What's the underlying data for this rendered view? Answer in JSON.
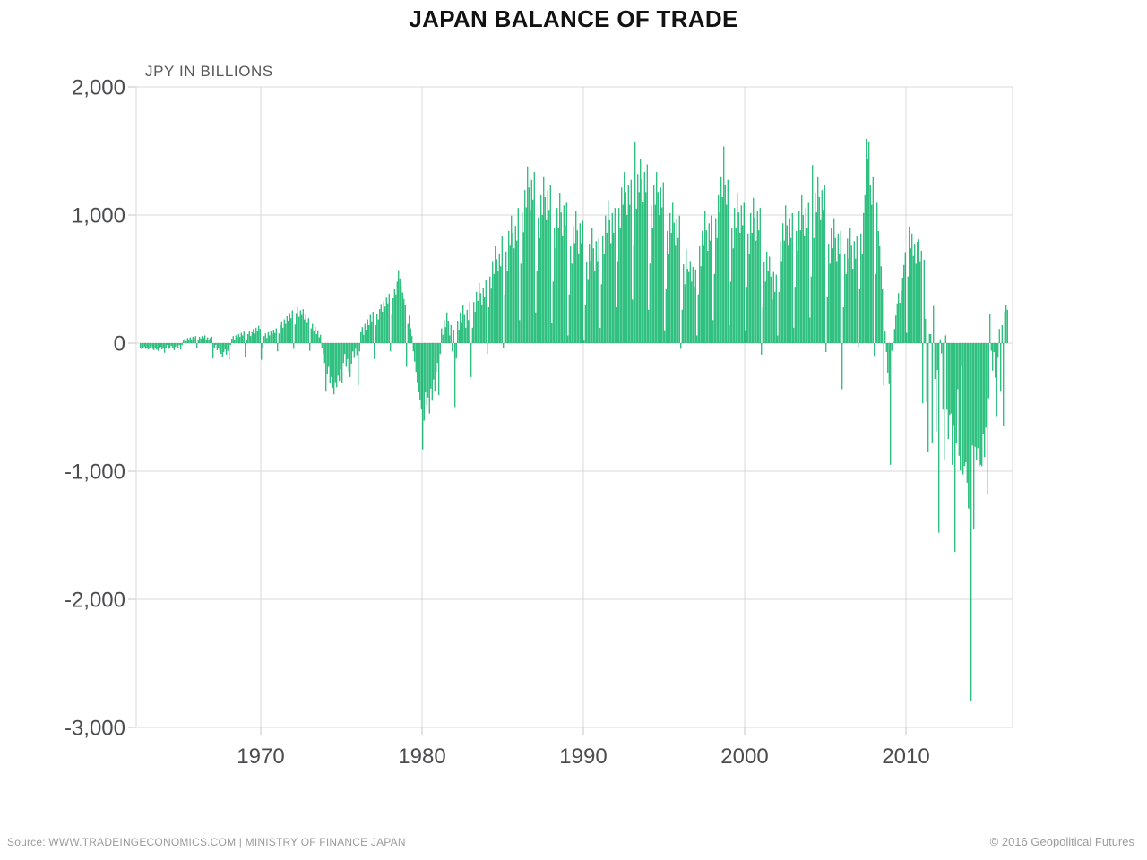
{
  "title": "JAPAN BALANCE OF TRADE",
  "subtitle": "JPY IN BILLIONS",
  "footer": {
    "source": "Source: WWW.TRADEINGECONOMICS.COM | MINISTRY OF FINANCE JAPAN",
    "copyright": "© 2016 Geopolitical Futures"
  },
  "colors": {
    "bar": "#00B163",
    "grid": "#D9D9D9",
    "tick": "#C4C4C4",
    "axis_text": "#4B4C4E",
    "title_text": "#121212",
    "subtitle_text": "#58595B",
    "footer_text": "#9B9B9B",
    "background": "#FFFFFF"
  },
  "chart_data": {
    "type": "bar",
    "title": "JAPAN BALANCE OF TRADE",
    "xlabel": "",
    "ylabel": "JPY IN BILLIONS",
    "unit": "JPY billions",
    "frequency": "monthly",
    "start": "1962-07",
    "ylim": [
      -3000,
      2000
    ],
    "y_ticks": [
      2000,
      1000,
      0,
      -1000,
      -2000,
      -3000
    ],
    "x_ticks": [
      1970,
      1980,
      1990,
      2000,
      2010
    ],
    "grid": true,
    "legend": "none",
    "values": [
      -35,
      -50,
      -40,
      -30,
      -45,
      -40,
      -50,
      -40,
      -25,
      -45,
      -55,
      -35,
      -50,
      -60,
      -40,
      -30,
      -50,
      -35,
      -75,
      -40,
      -15,
      -45,
      -35,
      -20,
      -40,
      -55,
      -30,
      -20,
      -40,
      -15,
      -50,
      -15,
      20,
      35,
      15,
      40,
      25,
      45,
      30,
      50,
      40,
      55,
      -40,
      25,
      50,
      35,
      55,
      40,
      60,
      30,
      45,
      25,
      40,
      50,
      -120,
      -40,
      -15,
      -55,
      -35,
      -65,
      -85,
      -105,
      -70,
      -50,
      -90,
      -60,
      -130,
      -15,
      35,
      55,
      25,
      60,
      45,
      70,
      50,
      80,
      60,
      90,
      -110,
      25,
      70,
      95,
      55,
      85,
      110,
      75,
      120,
      95,
      135,
      110,
      -130,
      -35,
      55,
      75,
      40,
      85,
      60,
      95,
      70,
      105,
      80,
      115,
      -65,
      75,
      140,
      170,
      120,
      185,
      150,
      210,
      175,
      235,
      195,
      255,
      -45,
      145,
      235,
      280,
      205,
      255,
      220,
      265,
      185,
      225,
      165,
      195,
      -60,
      115,
      150,
      95,
      130,
      70,
      100,
      45,
      65,
      -35,
      -85,
      -155,
      -380,
      -245,
      -185,
      -315,
      -265,
      -350,
      -400,
      -305,
      -345,
      -255,
      -295,
      -205,
      -315,
      -155,
      -85,
      -185,
      -125,
      -225,
      -265,
      -160,
      -65,
      -115,
      -45,
      -95,
      -330,
      -65,
      85,
      125,
      65,
      150,
      105,
      185,
      140,
      220,
      170,
      245,
      -125,
      140,
      225,
      185,
      265,
      305,
      245,
      325,
      285,
      355,
      310,
      385,
      -65,
      230,
      350,
      420,
      380,
      480,
      570,
      505,
      450,
      395,
      345,
      295,
      -185,
      150,
      215,
      115,
      55,
      -65,
      -145,
      -225,
      -305,
      -385,
      -445,
      -515,
      -830,
      -605,
      -385,
      -485,
      -425,
      -550,
      -355,
      -450,
      -285,
      -380,
      -225,
      -155,
      -405,
      -85,
      115,
      65,
      180,
      125,
      240,
      175,
      60,
      140,
      -65,
      105,
      -500,
      -120,
      175,
      105,
      240,
      165,
      300,
      220,
      120,
      260,
      180,
      320,
      -265,
      120,
      320,
      245,
      400,
      330,
      470,
      390,
      300,
      430,
      360,
      495,
      -85,
      280,
      520,
      425,
      640,
      540,
      755,
      655,
      560,
      700,
      600,
      835,
      -35,
      380,
      715,
      565,
      875,
      760,
      995,
      860,
      740,
      915,
      800,
      1055,
      180,
      620,
      1020,
      865,
      1195,
      1060,
      1380,
      1215,
      1040,
      1275,
      1120,
      1335,
      240,
      560,
      980,
      820,
      1155,
      1000,
      1295,
      1140,
      960,
      1195,
      1040,
      1235,
      160,
      480,
      895,
      740,
      1055,
      900,
      1175,
      1020,
      840,
      1075,
      920,
      1095,
      60,
      380,
      755,
      620,
      915,
      780,
      1035,
      880,
      700,
      935,
      780,
      955,
      20,
      300,
      635,
      500,
      775,
      640,
      895,
      740,
      560,
      795,
      640,
      815,
      120,
      460,
      835,
      700,
      995,
      860,
      1115,
      960,
      780,
      1015,
      860,
      1055,
      280,
      640,
      1055,
      900,
      1215,
      1080,
      1335,
      1180,
      1000,
      1235,
      1080,
      1275,
      340,
      760,
      1570,
      1050,
      1320,
      1180,
      1435,
      1280,
      1100,
      1335,
      1180,
      1395,
      260,
      620,
      1075,
      900,
      1235,
      1080,
      1335,
      1180,
      1000,
      1215,
      1060,
      1255,
      100,
      420,
      875,
      700,
      1015,
      860,
      1095,
      940,
      760,
      975,
      820,
      995,
      -45,
      260,
      615,
      460,
      735,
      580,
      555,
      640,
      480,
      595,
      440,
      575,
      60,
      380,
      755,
      600,
      875,
      760,
      1035,
      880,
      720,
      935,
      800,
      995,
      180,
      540,
      975,
      820,
      1155,
      1020,
      1295,
      1140,
      1535,
      1235,
      1080,
      1275,
      140,
      480,
      895,
      740,
      1055,
      900,
      1175,
      1020,
      860,
      1075,
      920,
      1095,
      100,
      440,
      855,
      700,
      1015,
      860,
      1135,
      980,
      800,
      1035,
      880,
      1055,
      -90,
      280,
      635,
      480,
      715,
      560,
      675,
      520,
      340,
      555,
      400,
      535,
      60,
      400,
      795,
      640,
      935,
      800,
      1075,
      920,
      760,
      975,
      820,
      1015,
      120,
      440,
      875,
      720,
      1035,
      880,
      1155,
      1000,
      840,
      1055,
      900,
      1095,
      200,
      520,
      1390,
      820,
      1175,
      1020,
      1295,
      1140,
      960,
      1195,
      1040,
      1235,
      -70,
      360,
      775,
      620,
      895,
      740,
      975,
      820,
      640,
      855,
      700,
      875,
      -360,
      280,
      695,
      540,
      815,
      660,
      895,
      760,
      580,
      795,
      660,
      835,
      -30,
      420,
      855,
      700,
      1015,
      1155,
      1595,
      1435,
      1575,
      1235,
      1080,
      1295,
      -100,
      540,
      1095,
      875,
      755,
      600,
      420,
      -330,
      90,
      -70,
      -230,
      -320,
      -950,
      -60,
      10,
      110,
      215,
      310,
      390,
      315,
      410,
      510,
      610,
      710,
      80,
      520,
      910,
      740,
      855,
      680,
      775,
      620,
      790,
      810,
      640,
      720,
      -470,
      650,
      190,
      -460,
      -850,
      70,
      70,
      -780,
      290,
      -280,
      -690,
      -210,
      -1480,
      30,
      -80,
      -520,
      -910,
      60,
      -520,
      -750,
      -560,
      -550,
      -950,
      -640,
      -1630,
      -780,
      -360,
      -880,
      -995,
      -180,
      -1025,
      -960,
      -930,
      -1090,
      -1290,
      -1300,
      -2790,
      -800,
      -1450,
      -810,
      -910,
      -820,
      -965,
      -950,
      -960,
      -710,
      -890,
      -660,
      -1180,
      -430,
      230,
      -60,
      -215,
      -70,
      -270,
      -570,
      -115,
      110,
      -380,
      140,
      -650,
      245,
      300,
      260
    ]
  }
}
